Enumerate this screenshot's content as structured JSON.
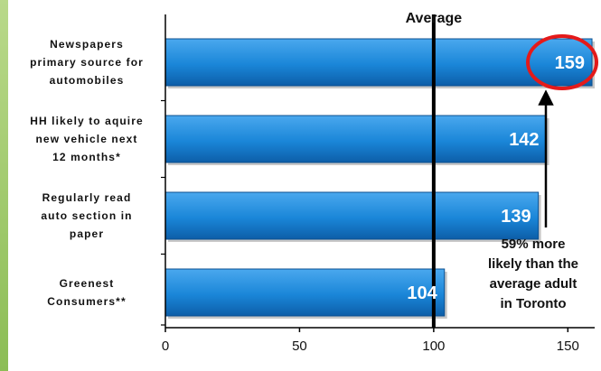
{
  "chart_data": {
    "type": "bar",
    "orientation": "horizontal",
    "title": "Average",
    "categories": [
      "Newspapers primary source for automobiles",
      "HH likely to aquire new vehicle next 12 months*",
      "Regularly read auto section in paper",
      "Greenest Consumers**"
    ],
    "category_lines": [
      [
        "Newspapers",
        "primary source for",
        "automobiles"
      ],
      [
        "HH likely to aquire",
        "new vehicle next",
        "12 months*"
      ],
      [
        "Regularly read",
        "auto section in",
        "paper"
      ],
      [
        "Greenest",
        "Consumers**"
      ]
    ],
    "values": [
      159,
      142,
      139,
      104
    ],
    "xlim": [
      0,
      160
    ],
    "xticks": [
      0,
      50,
      100,
      150
    ],
    "reference_line": 100,
    "highlighted_index": 0,
    "annotation": {
      "lines": [
        "59% more",
        "likely than the",
        "average adult",
        "in Toronto"
      ]
    },
    "colors": {
      "bar": "#1a86d8",
      "bar_dark": "#0d5ea8",
      "bar_light": "#4aa8ee",
      "highlight_circle": "#e41a1a",
      "reference_line": "#000000",
      "side_strip": "#8cbd55"
    }
  }
}
